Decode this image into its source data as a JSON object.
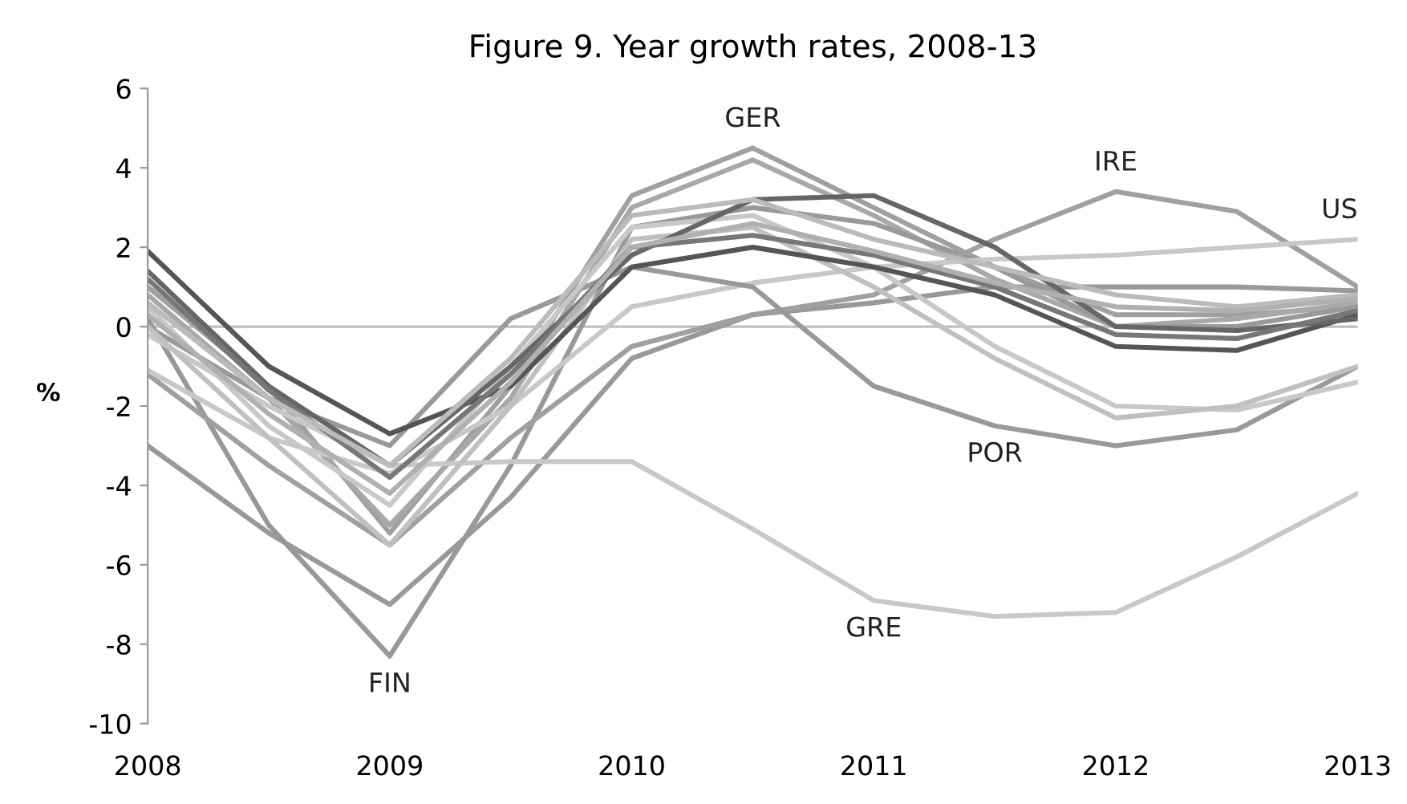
{
  "chart_data": {
    "type": "line",
    "title": "Figure 9. Year growth rates, 2008-13",
    "ylabel": "%",
    "x": [
      2008,
      2008.5,
      2009,
      2009.5,
      2010,
      2010.5,
      2011,
      2011.5,
      2012,
      2012.5,
      2013
    ],
    "xlim": [
      2008,
      2013
    ],
    "xticks": [
      2008,
      2009,
      2010,
      2011,
      2012,
      2013
    ],
    "ylim": [
      -10,
      6
    ],
    "yticks": [
      -10,
      -8,
      -6,
      -4,
      -2,
      0,
      2,
      4,
      6
    ],
    "grid": false,
    "legend": false,
    "marker": "none",
    "line_style": "solid",
    "ref_lines": [
      {
        "axis": "y",
        "value": 0,
        "color": "#bfbfbf"
      }
    ],
    "series": [
      {
        "name": "GER",
        "color": "#a0a0a0",
        "values": [
          1.0,
          -1.5,
          -5.2,
          -1.5,
          3.3,
          4.5,
          3.0,
          1.5,
          0.3,
          0.3,
          0.5
        ]
      },
      {
        "color": "#a8a8a8",
        "values": [
          0.8,
          -1.8,
          -5.0,
          -1.8,
          3.0,
          4.2,
          2.8,
          1.2,
          0.0,
          0.2,
          0.6
        ]
      },
      {
        "name": "FIN",
        "color": "#999999",
        "values": [
          0.2,
          -5.0,
          -8.3,
          -3.5,
          2.5,
          3.0,
          2.6,
          1.5,
          0.0,
          0.0,
          0.5
        ]
      },
      {
        "color": "#999999",
        "values": [
          -3.0,
          -5.2,
          -7.0,
          -4.3,
          -0.8,
          0.3,
          0.6,
          1.0,
          1.0,
          1.0,
          0.9
        ]
      },
      {
        "name": "IRE",
        "color": "#a0a0a0",
        "values": [
          -1.2,
          -3.5,
          -5.5,
          -2.8,
          -0.5,
          0.3,
          0.8,
          2.2,
          3.4,
          2.9,
          1.0
        ]
      },
      {
        "name": "US",
        "color": "#c8c8c8",
        "values": [
          -1.1,
          -2.8,
          -3.7,
          -2.0,
          0.5,
          1.1,
          1.5,
          1.7,
          1.8,
          2.0,
          2.2
        ]
      },
      {
        "name": "GRE",
        "color": "#c8c8c8",
        "values": [
          -0.2,
          -2.0,
          -3.5,
          -3.4,
          -3.4,
          -5.1,
          -6.9,
          -7.3,
          -7.2,
          -5.8,
          -4.2
        ]
      },
      {
        "name": "POR",
        "color": "#999999",
        "values": [
          0.0,
          -1.8,
          -3.0,
          0.2,
          1.5,
          1.0,
          -1.5,
          -2.5,
          -3.0,
          -2.6,
          -1.0
        ]
      },
      {
        "color": "#c8c8c8",
        "values": [
          0.5,
          -2.5,
          -4.5,
          -1.0,
          2.5,
          2.8,
          1.5,
          -0.5,
          -2.0,
          -2.1,
          -1.4
        ]
      },
      {
        "color": "#c0c0c0",
        "values": [
          0.0,
          -2.8,
          -5.5,
          -2.0,
          2.2,
          2.5,
          1.0,
          -0.8,
          -2.3,
          -2.0,
          -1.0
        ]
      },
      {
        "color": "#555555",
        "values": [
          1.9,
          -1.0,
          -2.7,
          -1.5,
          1.5,
          2.0,
          1.5,
          0.8,
          -0.5,
          -0.6,
          0.3
        ]
      },
      {
        "color": "#666666",
        "values": [
          1.4,
          -1.5,
          -3.5,
          -1.0,
          1.8,
          3.2,
          3.3,
          2.0,
          0.0,
          -0.1,
          0.2
        ]
      },
      {
        "color": "#777777",
        "values": [
          1.2,
          -1.6,
          -3.8,
          -1.2,
          2.0,
          2.3,
          1.8,
          1.0,
          -0.2,
          -0.3,
          0.4
        ]
      },
      {
        "color": "#bbbbbb",
        "values": [
          0.6,
          -1.8,
          -3.5,
          -0.8,
          2.8,
          3.2,
          2.2,
          1.5,
          0.8,
          0.5,
          0.8
        ]
      },
      {
        "color": "#b0b0b0",
        "values": [
          0.3,
          -2.2,
          -4.2,
          -1.4,
          2.0,
          2.6,
          1.9,
          1.1,
          0.5,
          0.4,
          0.7
        ]
      }
    ]
  }
}
